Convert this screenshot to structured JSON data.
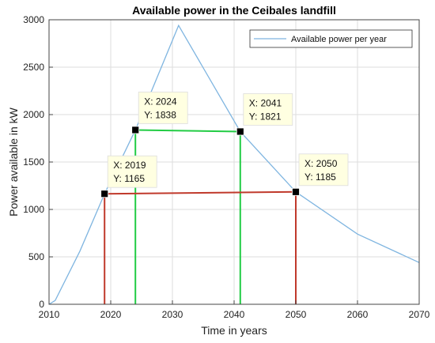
{
  "chart_data": {
    "type": "line",
    "title": "Available power in the Ceibales landfill",
    "xlabel": "Time in years",
    "ylabel": "Power available in kW",
    "xlim": [
      2010,
      2070
    ],
    "ylim": [
      0,
      3000
    ],
    "xticks": [
      2010,
      2020,
      2030,
      2040,
      2050,
      2060,
      2070
    ],
    "yticks": [
      0,
      500,
      1000,
      1500,
      2000,
      2500,
      3000
    ],
    "grid": true,
    "legend_position": "top-right",
    "colors": {
      "series": "#7fb5e0",
      "green": "#22cc44",
      "red": "#c0392b",
      "tip_bg": "#ffffe1"
    },
    "series": [
      {
        "name": "Available power per year",
        "x": [
          2010,
          2011,
          2015,
          2019,
          2024,
          2031,
          2041,
          2050,
          2060,
          2070
        ],
        "y": [
          0,
          40,
          560,
          1165,
          1838,
          2940,
          1821,
          1185,
          740,
          440
        ]
      }
    ],
    "datatips": [
      {
        "x": 2019,
        "y": 1165,
        "line1": "X: 2019",
        "line2": "Y: 1165",
        "placement": "above",
        "color": "red"
      },
      {
        "x": 2024,
        "y": 1838,
        "line1": "X: 2024",
        "line2": "Y: 1838",
        "placement": "above",
        "color": "green"
      },
      {
        "x": 2041,
        "y": 1821,
        "line1": "X: 2041",
        "line2": "Y: 1821",
        "placement": "above",
        "color": "green"
      },
      {
        "x": 2050,
        "y": 1185,
        "line1": "X: 2050",
        "line2": "Y: 1185",
        "placement": "above",
        "color": "red"
      }
    ],
    "connectors": [
      {
        "from_x": 2019,
        "from_y": 1165,
        "to_x": 2050,
        "to_y": 1185,
        "color": "red"
      },
      {
        "from_x": 2024,
        "from_y": 1838,
        "to_x": 2041,
        "to_y": 1821,
        "color": "green"
      }
    ]
  }
}
